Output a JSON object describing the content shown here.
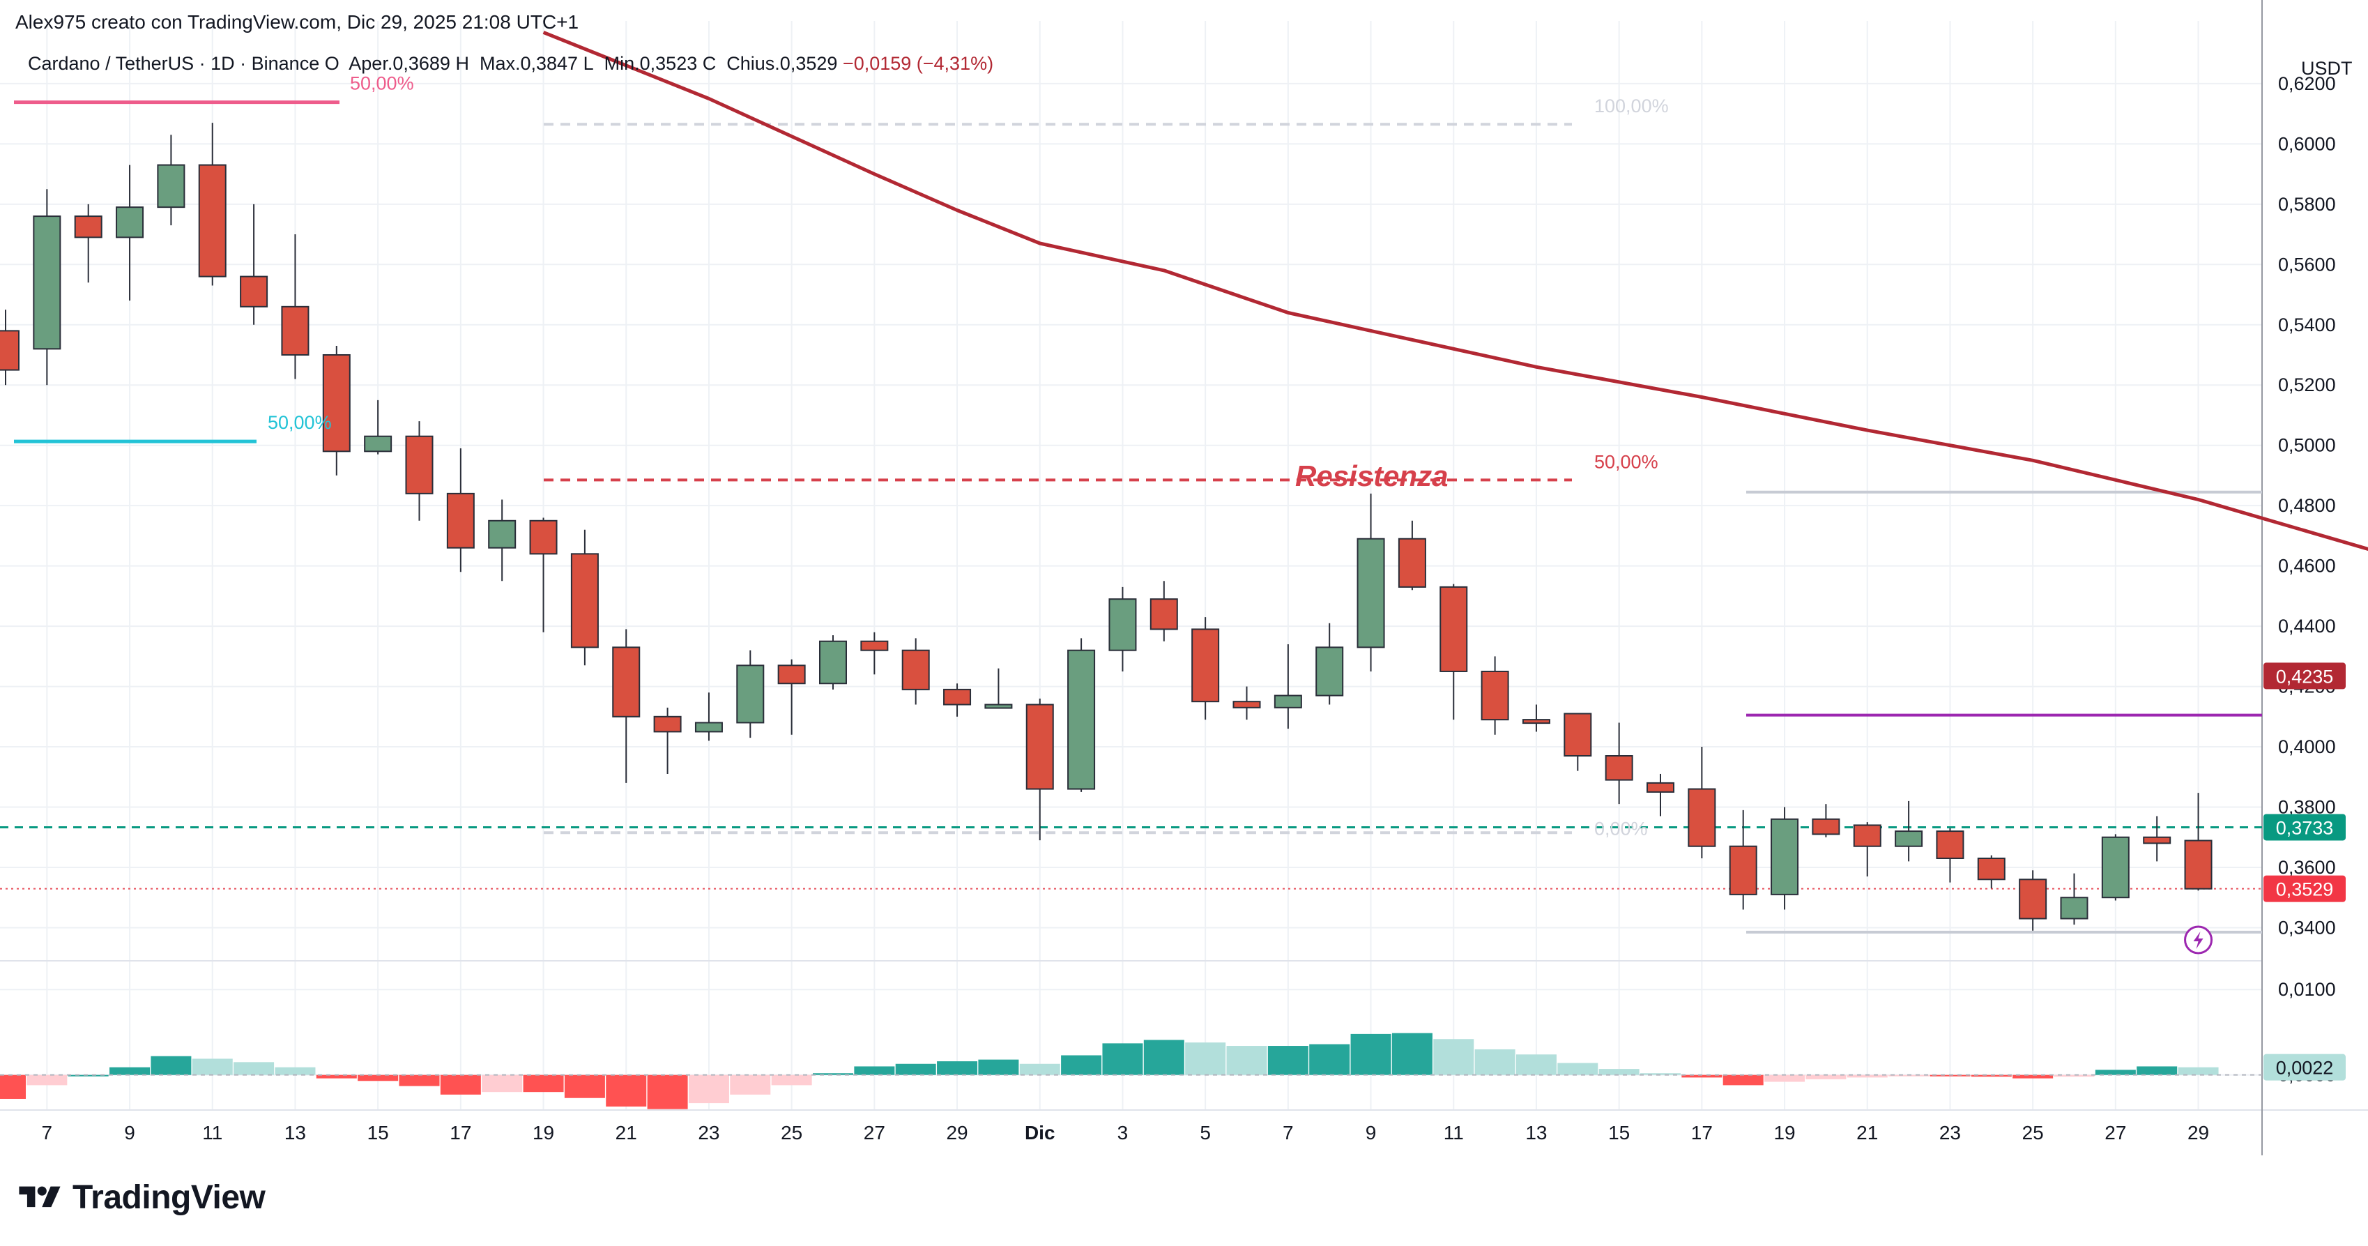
{
  "header": {
    "credit": "Alex975 creato con TradingView.com, Dic 29, 2025 21:08 UTC+1",
    "symbol": "Cardano / TetherUS · 1D · Binance",
    "open_label": "O",
    "open_value": "Aper.0,3689",
    "high_label": "H",
    "high_value": "Max.0,3847",
    "low_label": "L",
    "low_value": "Min.0,3523",
    "close_label": "C",
    "close_value": "Chius.0,3529",
    "change_value": "−0,0159 (−4,31%)"
  },
  "brand": {
    "name": "TradingView",
    "icon": "tradingview-logo-icon"
  },
  "colors": {
    "up": "#6a9e7f",
    "down": "#d9503f",
    "ma": "#b22833",
    "hist_pos_strong": "#26a69a",
    "hist_pos_weak": "#b2dfdb",
    "hist_neg_strong": "#ff5252",
    "hist_neg_weak": "#ffcdd2",
    "fib_pink": "#ee5c8b",
    "fib_cyan": "#22c3d6",
    "resistance": "#d6404b",
    "purple": "#9c27b0",
    "teal_line": "#089981"
  },
  "chart_data": {
    "type": "candlestick",
    "currency": "USDT",
    "price_axis": {
      "range": [
        0.329,
        0.632
      ],
      "ticks": [
        "0,6200",
        "0,6000",
        "0,5800",
        "0,5600",
        "0,5400",
        "0,5200",
        "0,5000",
        "0,4800",
        "0,4600",
        "0,4400",
        "0,4200",
        "0,4000",
        "0,3800",
        "0,3600",
        "0,3400"
      ],
      "tick_values": [
        0.62,
        0.6,
        0.58,
        0.56,
        0.54,
        0.52,
        0.5,
        0.48,
        0.46,
        0.44,
        0.42,
        0.4,
        0.38,
        0.36,
        0.34
      ]
    },
    "x_axis": {
      "ticks": [
        "7",
        "9",
        "11",
        "13",
        "15",
        "17",
        "19",
        "21",
        "23",
        "25",
        "27",
        "29",
        "Dic",
        "3",
        "5",
        "7",
        "9",
        "11",
        "13",
        "15",
        "17",
        "19",
        "21",
        "23",
        "25",
        "27",
        "29"
      ],
      "tick_index": [
        1,
        3,
        5,
        7,
        9,
        11,
        13,
        15,
        17,
        19,
        21,
        23,
        25,
        27,
        29,
        31,
        33,
        35,
        37,
        39,
        41,
        43,
        45,
        47,
        49,
        51,
        53
      ]
    },
    "candles": [
      {
        "o": 0.538,
        "h": 0.545,
        "l": 0.52,
        "c": 0.525
      },
      {
        "o": 0.532,
        "h": 0.585,
        "l": 0.52,
        "c": 0.576
      },
      {
        "o": 0.576,
        "h": 0.58,
        "l": 0.554,
        "c": 0.569
      },
      {
        "o": 0.569,
        "h": 0.593,
        "l": 0.548,
        "c": 0.579
      },
      {
        "o": 0.579,
        "h": 0.603,
        "l": 0.573,
        "c": 0.593
      },
      {
        "o": 0.593,
        "h": 0.607,
        "l": 0.553,
        "c": 0.556
      },
      {
        "o": 0.556,
        "h": 0.58,
        "l": 0.54,
        "c": 0.546
      },
      {
        "o": 0.546,
        "h": 0.57,
        "l": 0.522,
        "c": 0.53
      },
      {
        "o": 0.53,
        "h": 0.533,
        "l": 0.49,
        "c": 0.498
      },
      {
        "o": 0.498,
        "h": 0.515,
        "l": 0.497,
        "c": 0.503
      },
      {
        "o": 0.503,
        "h": 0.508,
        "l": 0.475,
        "c": 0.484
      },
      {
        "o": 0.484,
        "h": 0.499,
        "l": 0.458,
        "c": 0.466
      },
      {
        "o": 0.466,
        "h": 0.482,
        "l": 0.455,
        "c": 0.475
      },
      {
        "o": 0.475,
        "h": 0.476,
        "l": 0.438,
        "c": 0.464
      },
      {
        "o": 0.464,
        "h": 0.472,
        "l": 0.427,
        "c": 0.433
      },
      {
        "o": 0.433,
        "h": 0.439,
        "l": 0.388,
        "c": 0.41
      },
      {
        "o": 0.41,
        "h": 0.413,
        "l": 0.391,
        "c": 0.405
      },
      {
        "o": 0.405,
        "h": 0.418,
        "l": 0.402,
        "c": 0.408
      },
      {
        "o": 0.408,
        "h": 0.432,
        "l": 0.403,
        "c": 0.427
      },
      {
        "o": 0.427,
        "h": 0.429,
        "l": 0.404,
        "c": 0.421
      },
      {
        "o": 0.421,
        "h": 0.437,
        "l": 0.419,
        "c": 0.435
      },
      {
        "o": 0.435,
        "h": 0.438,
        "l": 0.424,
        "c": 0.432
      },
      {
        "o": 0.432,
        "h": 0.436,
        "l": 0.414,
        "c": 0.419
      },
      {
        "o": 0.419,
        "h": 0.421,
        "l": 0.41,
        "c": 0.414
      },
      {
        "o": 0.414,
        "h": 0.426,
        "l": 0.413,
        "c": 0.414
      },
      {
        "o": 0.414,
        "h": 0.416,
        "l": 0.369,
        "c": 0.386
      },
      {
        "o": 0.386,
        "h": 0.436,
        "l": 0.385,
        "c": 0.432
      },
      {
        "o": 0.432,
        "h": 0.453,
        "l": 0.425,
        "c": 0.449
      },
      {
        "o": 0.449,
        "h": 0.455,
        "l": 0.435,
        "c": 0.439
      },
      {
        "o": 0.439,
        "h": 0.443,
        "l": 0.409,
        "c": 0.415
      },
      {
        "o": 0.415,
        "h": 0.42,
        "l": 0.409,
        "c": 0.413
      },
      {
        "o": 0.413,
        "h": 0.434,
        "l": 0.406,
        "c": 0.417
      },
      {
        "o": 0.417,
        "h": 0.441,
        "l": 0.414,
        "c": 0.433
      },
      {
        "o": 0.433,
        "h": 0.484,
        "l": 0.425,
        "c": 0.469
      },
      {
        "o": 0.469,
        "h": 0.475,
        "l": 0.452,
        "c": 0.453
      },
      {
        "o": 0.453,
        "h": 0.454,
        "l": 0.409,
        "c": 0.425
      },
      {
        "o": 0.425,
        "h": 0.43,
        "l": 0.404,
        "c": 0.409
      },
      {
        "o": 0.409,
        "h": 0.414,
        "l": 0.405,
        "c": 0.408
      },
      {
        "o": 0.411,
        "h": 0.411,
        "l": 0.392,
        "c": 0.397
      },
      {
        "o": 0.397,
        "h": 0.408,
        "l": 0.381,
        "c": 0.389
      },
      {
        "o": 0.388,
        "h": 0.391,
        "l": 0.377,
        "c": 0.385
      },
      {
        "o": 0.386,
        "h": 0.4,
        "l": 0.363,
        "c": 0.367
      },
      {
        "o": 0.367,
        "h": 0.379,
        "l": 0.346,
        "c": 0.351
      },
      {
        "o": 0.351,
        "h": 0.38,
        "l": 0.346,
        "c": 0.376
      },
      {
        "o": 0.376,
        "h": 0.381,
        "l": 0.37,
        "c": 0.371
      },
      {
        "o": 0.374,
        "h": 0.375,
        "l": 0.357,
        "c": 0.367
      },
      {
        "o": 0.367,
        "h": 0.382,
        "l": 0.362,
        "c": 0.372
      },
      {
        "o": 0.372,
        "h": 0.373,
        "l": 0.355,
        "c": 0.363
      },
      {
        "o": 0.363,
        "h": 0.364,
        "l": 0.353,
        "c": 0.356
      },
      {
        "o": 0.356,
        "h": 0.359,
        "l": 0.339,
        "c": 0.343
      },
      {
        "o": 0.343,
        "h": 0.358,
        "l": 0.341,
        "c": 0.35
      },
      {
        "o": 0.35,
        "h": 0.371,
        "l": 0.349,
        "c": 0.37
      },
      {
        "o": 0.37,
        "h": 0.377,
        "l": 0.362,
        "c": 0.368
      },
      {
        "o": 0.3689,
        "h": 0.3847,
        "l": 0.3523,
        "c": 0.3529
      }
    ],
    "moving_average": {
      "points": [
        [
          13,
          0.637
        ],
        [
          17,
          0.615
        ],
        [
          21,
          0.59
        ],
        [
          23,
          0.578
        ],
        [
          25,
          0.567
        ],
        [
          28,
          0.558
        ],
        [
          31,
          0.544
        ],
        [
          33,
          0.538
        ],
        [
          37,
          0.526
        ],
        [
          41,
          0.516
        ],
        [
          45,
          0.505
        ],
        [
          49,
          0.495
        ],
        [
          53,
          0.482
        ],
        [
          57,
          0.466
        ],
        [
          61,
          0.45
        ],
        [
          65,
          0.439
        ],
        [
          69,
          0.429
        ],
        [
          71,
          0.4235
        ]
      ],
      "last_value": 0.4235,
      "last_label": "0,4235"
    },
    "current_price": {
      "value": 0.3529,
      "label": "0,3529"
    },
    "support_line": {
      "value": 0.3733,
      "label": "0,3733"
    },
    "histogram": {
      "range": [
        -0.0037,
        0.0132
      ],
      "ticks": [
        "0,0100",
        "0,0000"
      ],
      "tick_values": [
        0.01,
        0.0
      ],
      "last_label": "0,0022",
      "values": [
        -0.0028,
        -0.0012,
        0.0,
        0.0009,
        0.0022,
        0.0019,
        0.0015,
        0.0009,
        -0.0004,
        -0.0007,
        -0.0013,
        -0.0023,
        -0.002,
        -0.002,
        -0.0027,
        -0.0037,
        -0.004,
        -0.0033,
        -0.0023,
        -0.0012,
        0.0002,
        0.001,
        0.0013,
        0.0016,
        0.0018,
        0.0013,
        0.0023,
        0.0037,
        0.0041,
        0.0038,
        0.0034,
        0.0034,
        0.0036,
        0.0048,
        0.0049,
        0.0042,
        0.003,
        0.0024,
        0.0014,
        0.0007,
        0.0002,
        -0.0003,
        -0.0012,
        -0.0008,
        -0.0005,
        -0.0003,
        -0.0001,
        -0.0001,
        -0.0002,
        -0.0004,
        -0.0002,
        0.0006,
        0.001,
        0.0009
      ]
    },
    "annotations": {
      "resistance_label": "Resistenza",
      "fib_labels": {
        "top_left": "50,00%",
        "mid_left": "50,00%",
        "top_mid": "100,00%",
        "mid_mid": "50,00%",
        "bottom_mid": "0,00%"
      },
      "pink_line_value": 0.6138,
      "cyan_line_value": 0.5013,
      "fib_top_value": 0.6065,
      "fib_mid_value": 0.4885,
      "fib_bottom_value": 0.3715,
      "gray_line_upper": 0.4845,
      "gray_line_lower": 0.3385,
      "purple_line_value": 0.4105
    }
  }
}
